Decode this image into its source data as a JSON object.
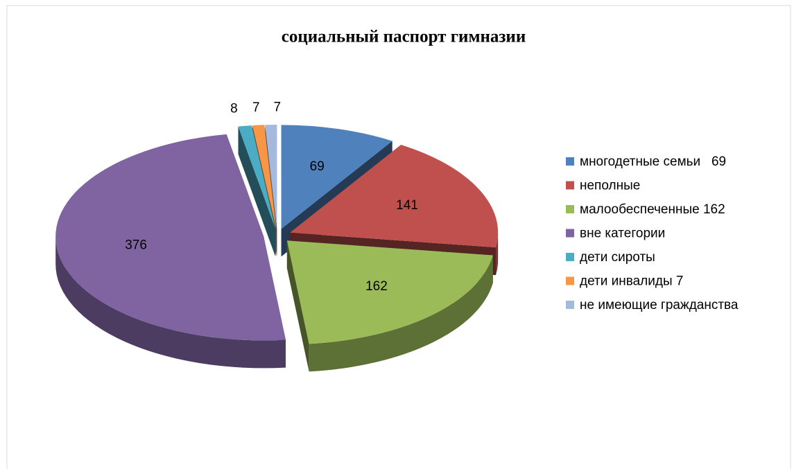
{
  "chart_data": {
    "type": "pie3d",
    "title": "социальный паспорт гимназии",
    "categories": [
      "многодетные семьи   69",
      "неполные",
      "малообеспеченные 162",
      "вне категории",
      "дети сироты",
      "дети инвалиды 7",
      "не имеющие гражданства"
    ],
    "values": [
      69,
      141,
      162,
      376,
      8,
      7,
      7
    ],
    "colors": [
      "#4f81bd",
      "#c0504d",
      "#9bbb59",
      "#8064a2",
      "#4bacc6",
      "#f79646",
      "#a5b9dc"
    ],
    "legend": "right"
  }
}
